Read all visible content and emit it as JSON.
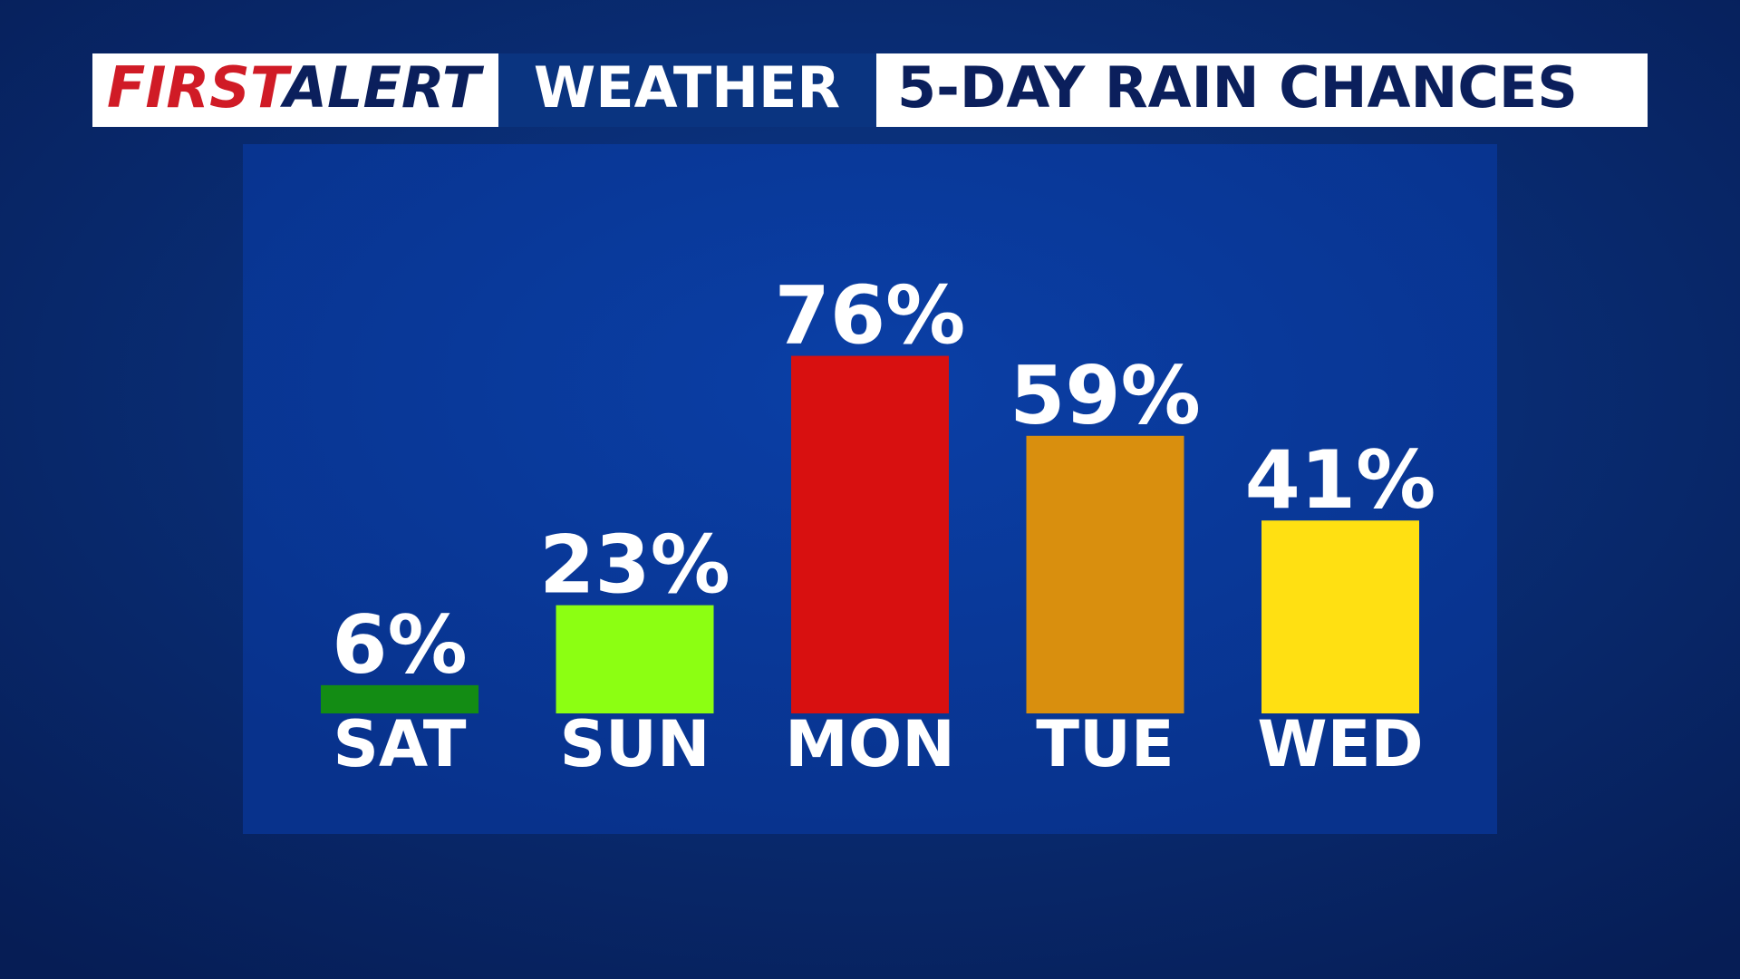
{
  "header": {
    "first": "FIRST",
    "alert": "ALERT",
    "weather": "WEATHER"
  },
  "chart_data": {
    "type": "bar",
    "title": "5-DAY RAIN CHANCES",
    "categories": [
      "SAT",
      "SUN",
      "MON",
      "TUE",
      "WED"
    ],
    "values": [
      6,
      23,
      76,
      59,
      41
    ],
    "value_labels": [
      "6%",
      "23%",
      "76%",
      "59%",
      "41%"
    ],
    "colors": [
      "#138c14",
      "#8cff12",
      "#d81010",
      "#d98f0e",
      "#ffe012"
    ]
  }
}
